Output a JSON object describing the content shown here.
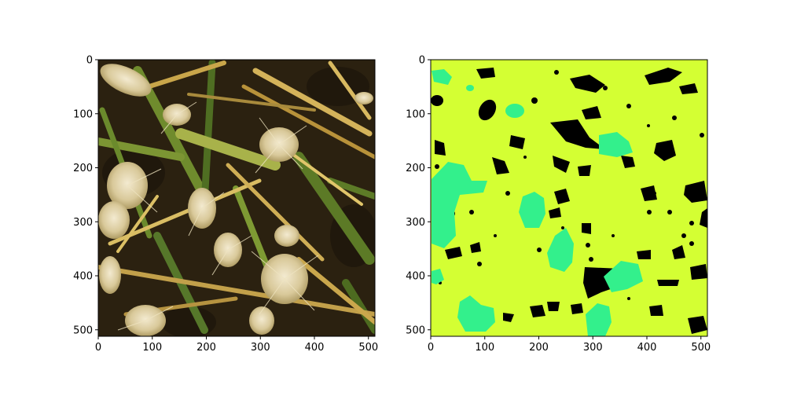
{
  "panels": [
    {
      "id": "photo",
      "kind": "photograph",
      "x_ticks": [
        "0",
        "100",
        "200",
        "300",
        "400",
        "500"
      ],
      "y_ticks": [
        "0",
        "100",
        "200",
        "300",
        "400",
        "500"
      ]
    },
    {
      "id": "mask",
      "kind": "segmentation-mask",
      "x_ticks": [
        "0",
        "100",
        "200",
        "300",
        "400",
        "500"
      ],
      "y_ticks": [
        "0",
        "100",
        "200",
        "300",
        "400",
        "500"
      ]
    }
  ],
  "colors": {
    "background_class": "#d4ff33",
    "head_class": "#33f08c",
    "gap_class": "#000000",
    "soil_dark": "#2b2110",
    "straw": "#c9a64a",
    "leaf_green": "#6f8b2d",
    "ear_cream": "#e6dcb8"
  }
}
